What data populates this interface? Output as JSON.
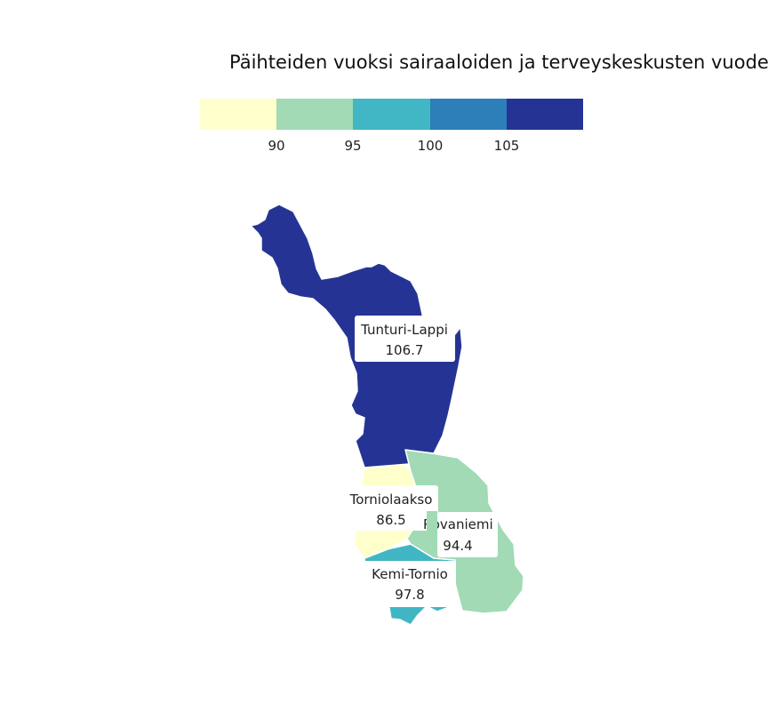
{
  "map": {
    "title": "Päihteiden vuoksi sairaaloiden ja terveyskeskusten vuodeosastoilla hoidetut potilaat",
    "legend": {
      "ticks": [
        "90",
        "95",
        "100",
        "105"
      ],
      "colors": [
        "#ffffcc",
        "#a1dab4",
        "#41b6c4",
        "#2c7fb8",
        "#253494"
      ],
      "breaks": [
        90,
        95,
        100,
        105
      ]
    },
    "regions": [
      {
        "name": "Tunturi-Lappi",
        "value": 106.7,
        "value_text": "106.7",
        "color": "#253494"
      },
      {
        "name": "Rovaniemi",
        "value": 94.4,
        "value_text": "94.4",
        "color": "#a1dab4"
      },
      {
        "name": "Torniolaakso",
        "value": 86.5,
        "value_text": "86.5",
        "color": "#ffffcc"
      },
      {
        "name": "Kemi-Tornio",
        "value": 97.8,
        "value_text": "97.8",
        "color": "#41b6c4"
      }
    ]
  }
}
